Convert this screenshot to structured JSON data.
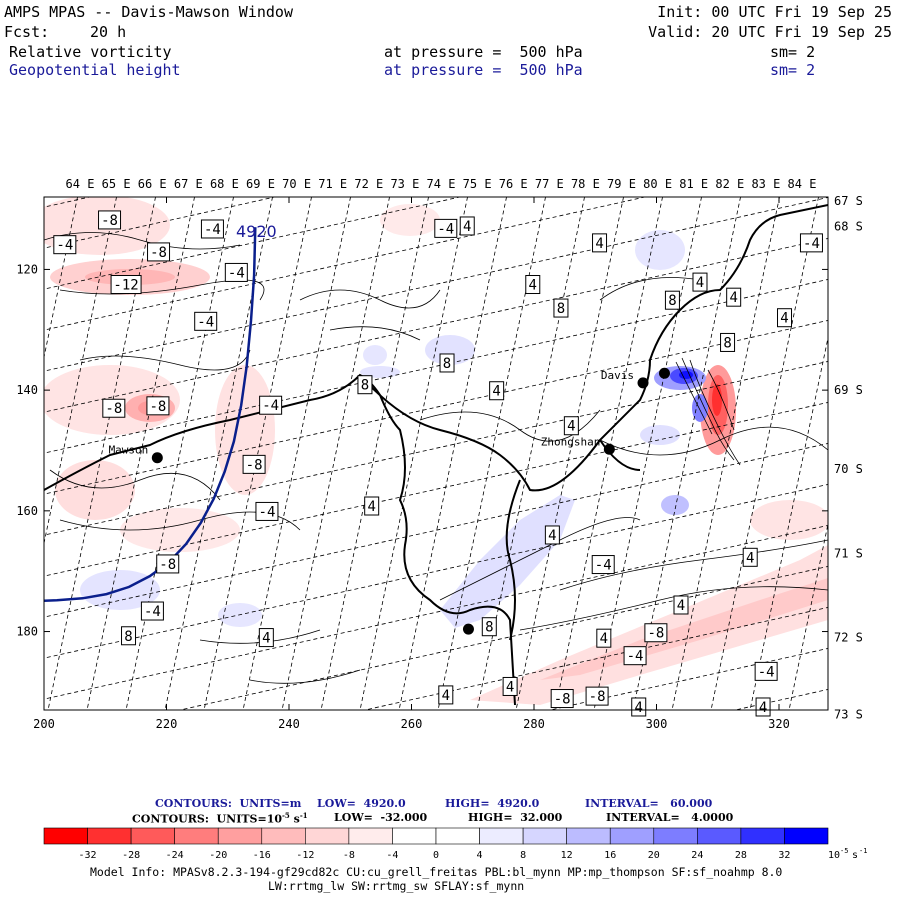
{
  "header": {
    "title": "AMPS MPAS -- Davis-Mawson Window",
    "fcst_label": "Fcst:",
    "fcst_value": "20 h",
    "init": "Init: 00 UTC Fri 19 Sep 25",
    "valid": "Valid: 20 UTC Fri 19 Sep 25",
    "field1": {
      "name": "Relative vorticity",
      "level": "at pressure =  500 hPa",
      "sm": "sm= 2"
    },
    "field2": {
      "name": "Geopotential height",
      "level": "at pressure =  500 hPa",
      "sm": "sm= 2"
    }
  },
  "chart_data": {
    "type": "contour-map",
    "title": "AMPS MPAS -- Davis-Mawson Window",
    "x_axis": {
      "range": [
        200,
        328
      ],
      "ticks": [
        200,
        220,
        240,
        260,
        280,
        300,
        320
      ]
    },
    "y_axis": {
      "range": [
        108,
        193
      ],
      "ticks": [
        120,
        140,
        160,
        180
      ],
      "direction": "down"
    },
    "longitude_labels": [
      "64 E",
      "65 E",
      "66 E",
      "67 E",
      "68 E",
      "69 E",
      "70 E",
      "71 E",
      "72 E",
      "73 E",
      "74 E",
      "75 E",
      "76 E",
      "77 E",
      "78 E",
      "79 E",
      "80 E",
      "81 E",
      "82 E",
      "83 E",
      "84 E"
    ],
    "latitude_labels": [
      {
        "label": "67 S",
        "y": 108.5
      },
      {
        "label": "68 S",
        "y": 112.7
      },
      {
        "label": "69 S",
        "y": 139.8
      },
      {
        "label": "70 S",
        "y": 152.9
      },
      {
        "label": "71 S",
        "y": 166.9
      },
      {
        "label": "72 S",
        "y": 180.8
      },
      {
        "label": "73 S",
        "y": 193.6
      }
    ],
    "stations": [
      {
        "name": "Mawson",
        "x": 218.5,
        "y": 151.2,
        "label": "Mawson"
      },
      {
        "name": "Davis",
        "x": 297.8,
        "y": 138.8,
        "label": "Davis"
      },
      {
        "name": "Zhongshan",
        "x": 292.3,
        "y": 149.8,
        "label": "Zhongshan"
      },
      {
        "name": "Davis2",
        "x": 301.3,
        "y": 137.2,
        "label": ""
      },
      {
        "name": "Inland",
        "x": 269.3,
        "y": 179.6,
        "label": ""
      }
    ],
    "height_contours": [
      {
        "value": 4920,
        "label": "4920",
        "x": [
          234.5,
          234.3,
          233.8,
          233.1,
          232.2,
          231.0,
          229.5,
          227.7,
          225.6,
          223.2,
          220.4,
          217.3,
          213.9,
          210.2,
          206.3,
          202.1,
          200.0
        ],
        "y": [
          113.0,
          121.0,
          128.5,
          136.0,
          142.5,
          148.5,
          153.5,
          158.0,
          162.0,
          165.5,
          168.5,
          170.8,
          172.6,
          173.8,
          174.5,
          174.8,
          174.9
        ]
      }
    ],
    "vorticity_labels": [
      {
        "v": "-8",
        "x": 210.7,
        "y": 111.8
      },
      {
        "v": "-4",
        "x": 227.5,
        "y": 113.3
      },
      {
        "v": "-4",
        "x": 203.4,
        "y": 115.9
      },
      {
        "v": "-8",
        "x": 218.7,
        "y": 117.1
      },
      {
        "v": "-12",
        "x": 213.4,
        "y": 122.5
      },
      {
        "v": "-4",
        "x": 231.4,
        "y": 120.5
      },
      {
        "v": "-4",
        "x": 226.4,
        "y": 128.6
      },
      {
        "v": "-8",
        "x": 211.4,
        "y": 143.0
      },
      {
        "v": "-8",
        "x": 218.6,
        "y": 142.6
      },
      {
        "v": "-4",
        "x": 237.0,
        "y": 142.5
      },
      {
        "v": "-8",
        "x": 234.3,
        "y": 152.3
      },
      {
        "v": "-4",
        "x": 236.4,
        "y": 160.1
      },
      {
        "v": "-8",
        "x": 220.2,
        "y": 168.8
      },
      {
        "v": "-4",
        "x": 217.7,
        "y": 176.6
      },
      {
        "v": "8",
        "x": 213.8,
        "y": 180.7
      },
      {
        "v": "4",
        "x": 236.3,
        "y": 181.0
      },
      {
        "v": "-4",
        "x": 265.6,
        "y": 113.2
      },
      {
        "v": "4",
        "x": 269.1,
        "y": 112.8
      },
      {
        "v": "4",
        "x": 290.7,
        "y": 115.6
      },
      {
        "v": "4",
        "x": 279.8,
        "y": 122.5
      },
      {
        "v": "8",
        "x": 284.4,
        "y": 126.4
      },
      {
        "v": "8",
        "x": 265.8,
        "y": 135.5
      },
      {
        "v": "8",
        "x": 252.4,
        "y": 139.1
      },
      {
        "v": "4",
        "x": 273.9,
        "y": 140.1
      },
      {
        "v": "4",
        "x": 286.1,
        "y": 145.9
      },
      {
        "v": "4",
        "x": 253.5,
        "y": 159.2
      },
      {
        "v": "4",
        "x": 283.0,
        "y": 164.0
      },
      {
        "v": "-4",
        "x": 291.3,
        "y": 168.9
      },
      {
        "v": "8",
        "x": 302.6,
        "y": 125.1
      },
      {
        "v": "4",
        "x": 307.1,
        "y": 122.1
      },
      {
        "v": "4",
        "x": 312.6,
        "y": 124.6
      },
      {
        "v": "8",
        "x": 311.6,
        "y": 132.1
      },
      {
        "v": "4",
        "x": 320.9,
        "y": 128.0
      },
      {
        "v": "-4",
        "x": 325.3,
        "y": 115.6
      },
      {
        "v": "4",
        "x": 291.4,
        "y": 181.1
      },
      {
        "v": "-8",
        "x": 299.9,
        "y": 180.2
      },
      {
        "v": "4",
        "x": 304.0,
        "y": 175.6
      },
      {
        "v": "4",
        "x": 315.3,
        "y": 167.7
      },
      {
        "v": "-4",
        "x": 296.5,
        "y": 184.0
      },
      {
        "v": "-4",
        "x": 317.9,
        "y": 186.6
      },
      {
        "v": "-8",
        "x": 284.6,
        "y": 191.1
      },
      {
        "v": "-8",
        "x": 290.3,
        "y": 190.7
      },
      {
        "v": "4",
        "x": 265.6,
        "y": 190.5
      },
      {
        "v": "4",
        "x": 276.1,
        "y": 189.1
      },
      {
        "v": "4",
        "x": 297.1,
        "y": 192.5
      },
      {
        "v": "4",
        "x": 317.4,
        "y": 192.5
      },
      {
        "v": "8",
        "x": 272.7,
        "y": 179.2
      }
    ],
    "vorticity_units": "10^-5 s^-1"
  },
  "info": {
    "contours1_label": "CONTOURS:  UNITS=m",
    "contours1_low": "LOW=  4920.0",
    "contours1_high": "HIGH=  4920.0",
    "contours1_interval": "INTERVAL=   60.000",
    "contours2_label_a": "CONTOURS:  UNITS=10",
    "contours2_label_exp": "-5",
    "contours2_label_b": " s",
    "contours2_label_exp2": "-1",
    "contours2_low": "LOW=  -32.000",
    "contours2_high": "HIGH=  32.000",
    "contours2_interval": "INTERVAL=   4.0000"
  },
  "colorbar": {
    "colors": [
      "#ff0000",
      "#ff3030",
      "#ff5a5a",
      "#ff7d7d",
      "#ff9f9f",
      "#ffbcbc",
      "#ffd6d6",
      "#ffecec",
      "#ffffff",
      "#ffffff",
      "#ececff",
      "#d6d6ff",
      "#bcbcff",
      "#9f9fff",
      "#7d7dff",
      "#5a5aff",
      "#3030ff",
      "#0000ff"
    ],
    "tick_labels": [
      "-32",
      "-28",
      "-24",
      "-20",
      "-16",
      "-12",
      "-8",
      "-4",
      "0",
      "4",
      "8",
      "12",
      "16",
      "20",
      "24",
      "28",
      "32"
    ],
    "units_base": "10",
    "units_exp": "-5",
    "units_s": "s",
    "units_exp2": "-1"
  },
  "model_info": {
    "line1": "Model Info: MPASv8.2.3-194-gf29cd82c CU:cu_grell_freitas PBL:bl_mynn MP:mp_thompson SF:sf_noahmp 8.0",
    "line2": "LW:rrtmg_lw SW:rrtmg_sw SFLAY:sf_mynn"
  }
}
